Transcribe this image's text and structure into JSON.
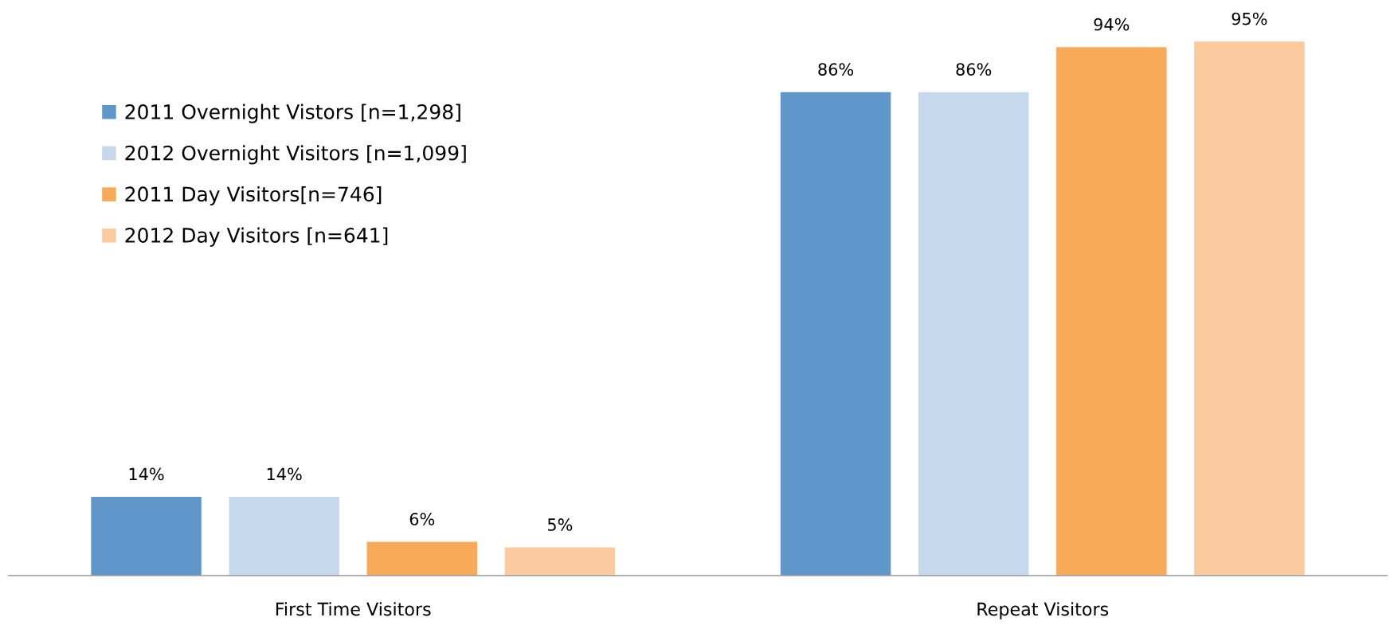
{
  "chart_data": {
    "type": "bar",
    "categories": [
      "First Time Visitors",
      "Repeat Visitors"
    ],
    "series": [
      {
        "name": "2011 Overnight Vistors [n=1,298]",
        "color": "#6097cb",
        "values": [
          14,
          86
        ],
        "value_labels": [
          "14%",
          "86%"
        ]
      },
      {
        "name": "2012 Overnight Visitors [n=1,099]",
        "color": "#c6d8ec",
        "values": [
          14,
          86
        ],
        "value_labels": [
          "14%",
          "86%"
        ]
      },
      {
        "name": "2011 Day Visitors[n=746]",
        "color": "#f9a95a",
        "values": [
          6,
          94
        ],
        "value_labels": [
          "6%",
          "94%"
        ]
      },
      {
        "name": "2012 Day Visitors [n=641]",
        "color": "#fbca9f",
        "values": [
          5,
          95
        ],
        "value_labels": [
          "5%",
          "95%"
        ]
      }
    ],
    "legend": "top left",
    "grid": false
  }
}
